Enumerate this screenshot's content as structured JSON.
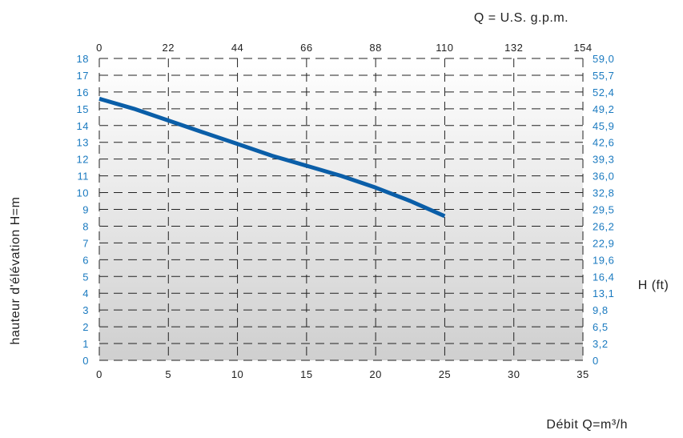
{
  "colors": {
    "curve": "#0a5ea8",
    "right_axis": "#1a7ac0",
    "text": "#222222",
    "grid": "#222222",
    "bg_top": "#ffffff",
    "bg_bottom": "#cfcfcf"
  },
  "chart_data": {
    "type": "line",
    "xlabel": "Débit Q=m³/h",
    "ylabel": "hauteur d'élévation H=m",
    "x2label": "Q = U.S. g.p.m.",
    "y2label": "H (ft)",
    "xlim": [
      0,
      35
    ],
    "ylim": [
      0,
      18
    ],
    "x_ticks": [
      "0",
      "5",
      "10",
      "15",
      "20",
      "25",
      "30",
      "35"
    ],
    "y_ticks": [
      "0",
      "1",
      "2",
      "3",
      "4",
      "5",
      "6",
      "7",
      "8",
      "9",
      "10",
      "11",
      "12",
      "13",
      "14",
      "15",
      "16",
      "17",
      "18"
    ],
    "x2_ticks": [
      "0",
      "22",
      "44",
      "66",
      "88",
      "110",
      "132",
      "154"
    ],
    "y2_ticks": [
      "0",
      "3,2",
      "6,5",
      "9,8",
      "13,1",
      "16,4",
      "19,6",
      "22,9",
      "26,2",
      "29,5",
      "32,8",
      "36,0",
      "39,3",
      "42,6",
      "45,9",
      "49,2",
      "52,4",
      "55,7",
      "59,0"
    ],
    "grid": true,
    "series": [
      {
        "x": [
          0,
          2.5,
          5,
          7.5,
          10,
          12.5,
          15,
          17.5,
          20,
          22.5,
          25
        ],
        "y": [
          15.6,
          15.0,
          14.3,
          13.6,
          12.9,
          12.2,
          11.6,
          11.0,
          10.3,
          9.5,
          8.6
        ]
      }
    ]
  }
}
